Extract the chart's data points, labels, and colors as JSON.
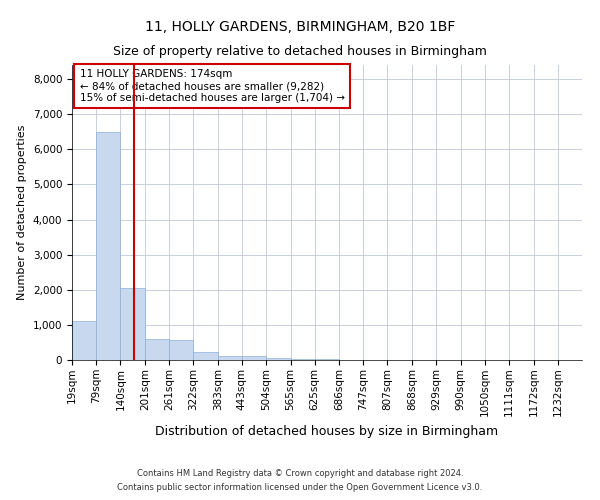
{
  "title1": "11, HOLLY GARDENS, BIRMINGHAM, B20 1BF",
  "title2": "Size of property relative to detached houses in Birmingham",
  "xlabel": "Distribution of detached houses by size in Birmingham",
  "ylabel": "Number of detached properties",
  "footnote1": "Contains HM Land Registry data © Crown copyright and database right 2024.",
  "footnote2": "Contains public sector information licensed under the Open Government Licence v3.0.",
  "bin_labels": [
    "19sqm",
    "79sqm",
    "140sqm",
    "201sqm",
    "261sqm",
    "322sqm",
    "383sqm",
    "443sqm",
    "504sqm",
    "565sqm",
    "625sqm",
    "686sqm",
    "747sqm",
    "807sqm",
    "868sqm",
    "929sqm",
    "990sqm",
    "1050sqm",
    "1111sqm",
    "1172sqm",
    "1232sqm"
  ],
  "bin_edges": [
    19,
    79,
    140,
    201,
    261,
    322,
    383,
    443,
    504,
    565,
    625,
    686,
    747,
    807,
    868,
    929,
    990,
    1050,
    1111,
    1172,
    1232
  ],
  "bar_heights": [
    1100,
    6500,
    2050,
    600,
    580,
    220,
    110,
    110,
    55,
    30,
    30,
    0,
    0,
    0,
    0,
    0,
    0,
    0,
    0,
    0,
    0
  ],
  "bar_color": "#c8d9ef",
  "bar_edgecolor": "#8eafd4",
  "property_size": 174,
  "vline_color": "#cc0000",
  "annotation_text": "11 HOLLY GARDENS: 174sqm\n← 84% of detached houses are smaller (9,282)\n15% of semi-detached houses are larger (1,704) →",
  "annotation_box_color": "#ffffff",
  "annotation_box_edgecolor": "#cc0000",
  "ylim": [
    0,
    8400
  ],
  "yticks": [
    0,
    1000,
    2000,
    3000,
    4000,
    5000,
    6000,
    7000,
    8000
  ],
  "background_color": "#ffffff",
  "grid_color": "#c0c8d8",
  "title1_fontsize": 10,
  "title2_fontsize": 9,
  "annotation_fontsize": 7.5,
  "xlabel_fontsize": 9,
  "ylabel_fontsize": 8,
  "tick_fontsize": 7.5,
  "footnote_fontsize": 6
}
